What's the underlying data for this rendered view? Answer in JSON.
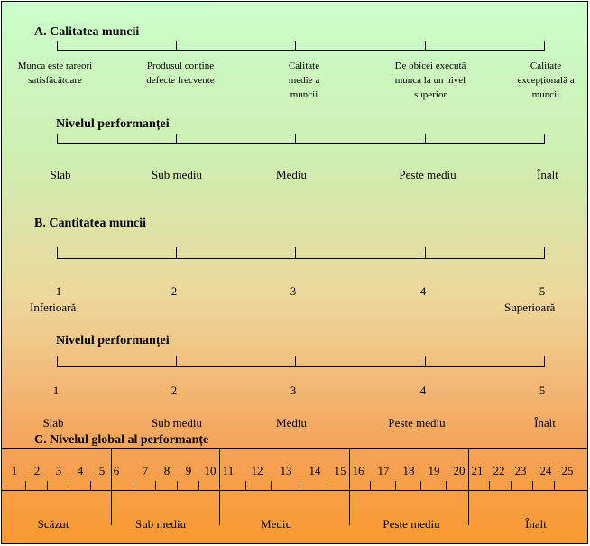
{
  "sectionA": {
    "title": "A.  Calitatea muncii",
    "descriptors": [
      "Munca este rareori satisfăcătoare",
      "Produsul conține defecte frecvente",
      "Calitate medie a muncii",
      "De obicei execută munca la un nivel superior",
      "Calitate excepțională a muncii"
    ],
    "performance_title": "Nivelul performanței",
    "levels": [
      "Slab",
      "Sub mediu",
      "Mediu",
      "Peste mediu",
      "Înalt"
    ]
  },
  "sectionB": {
    "title": "B.  Cantitatea muncii",
    "scores": [
      "1",
      "2",
      "3",
      "4",
      "5"
    ],
    "low_label": "Inferioară",
    "high_label": "Superioară",
    "performance_title": "Nivelul performanței",
    "scores2": [
      "1",
      "2",
      "3",
      "4",
      "5"
    ],
    "levels": [
      "Slab",
      "Sub mediu",
      "Mediu",
      "Peste mediu",
      "Înalt"
    ]
  },
  "sectionC": {
    "title": "C.  Nivelul global al performanțe",
    "scale": [
      "1",
      "2",
      "3",
      "4",
      "5",
      "6",
      "7",
      "8",
      "9",
      "10",
      "11",
      "12",
      "13",
      "14",
      "15",
      "16",
      "17",
      "18",
      "19",
      "20",
      "21",
      "22",
      "23",
      "24",
      "25"
    ],
    "levels": [
      "Scăzut",
      "Sub mediu",
      "Mediu",
      "Peste mediu",
      "Înalt"
    ]
  }
}
